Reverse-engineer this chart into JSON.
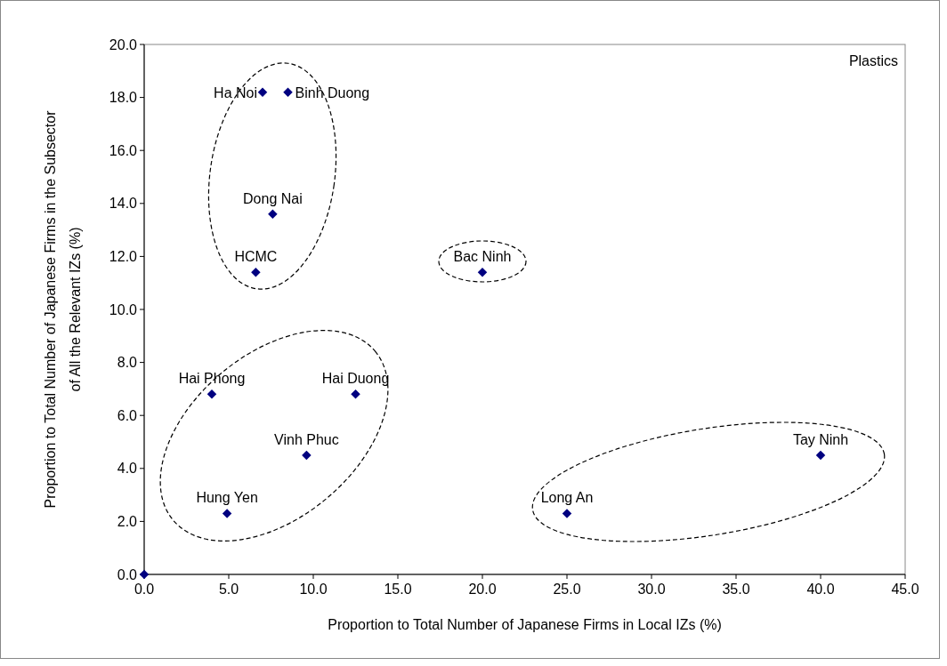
{
  "chart_data": {
    "type": "scatter",
    "xlabel": "Proportion to Total Number of Japanese Firms in Local IZs (%)",
    "ylabel": "Proportion to Total Number of Japanese Firms in the Subsector of All the Relevant IZs (%)",
    "x": [
      0,
      7.0,
      8.5,
      7.6,
      6.6,
      20,
      4.0,
      12.5,
      9.6,
      4.9,
      25,
      40
    ],
    "series": [
      {
        "color": "#000080",
        "values": [
          0,
          18.2,
          18.2,
          13.6,
          11.4,
          11.4,
          6.8,
          6.8,
          4.5,
          2.3,
          2.3,
          4.5
        ]
      }
    ],
    "marker": "diamond",
    "grid": false,
    "xlim": [
      0,
      45
    ],
    "ylim": [
      0,
      20
    ],
    "xticks": [
      {
        "value": 0,
        "label": "0.0"
      },
      {
        "value": 5,
        "label": "5.0"
      },
      {
        "value": 10,
        "label": "10.0"
      },
      {
        "value": 15,
        "label": "15.0"
      },
      {
        "value": 20,
        "label": "20.0"
      },
      {
        "value": 25,
        "label": "25.0"
      },
      {
        "value": 30,
        "label": "30.0"
      },
      {
        "value": 35,
        "label": "35.0"
      },
      {
        "value": 40,
        "label": "40.0"
      },
      {
        "value": 45,
        "label": "45.0"
      }
    ],
    "yticks": [
      {
        "value": 0,
        "label": "0.0"
      },
      {
        "value": 2,
        "label": "2.0"
      },
      {
        "value": 4,
        "label": "4.0"
      },
      {
        "value": 6,
        "label": "6.0"
      },
      {
        "value": 8,
        "label": "8.0"
      },
      {
        "value": 10,
        "label": "10.0"
      },
      {
        "value": 12,
        "label": "12.0"
      },
      {
        "value": 14,
        "label": "14.0"
      },
      {
        "value": 16,
        "label": "16.0"
      },
      {
        "value": 18,
        "label": "18.0"
      },
      {
        "value": 20,
        "label": "20.0"
      }
    ],
    "annotations": [
      "Plastics",
      {
        "text": "Ha Noi",
        "x": 7.0,
        "y": 18.2
      },
      {
        "text": "Binh Duong",
        "x": 8.5,
        "y": 18.2
      },
      {
        "text": "Dong Nai",
        "x": 7.6,
        "y": 13.6
      },
      {
        "text": "HCMC",
        "x": 6.6,
        "y": 11.4
      },
      {
        "text": "Bac Ninh",
        "x": 20,
        "y": 11.4
      },
      {
        "text": "Hai Phong",
        "x": 4.0,
        "y": 6.8
      },
      {
        "text": "Hai Duong",
        "x": 12.5,
        "y": 6.8
      },
      {
        "text": "Vinh Phuc",
        "x": 9.6,
        "y": 4.5
      },
      {
        "text": "Hung Yen",
        "x": 4.9,
        "y": 2.3
      },
      {
        "text": "Long An",
        "x": 25,
        "y": 2.3
      },
      {
        "text": "Tay Ninh",
        "x": 40,
        "y": 4.5
      }
    ]
  }
}
